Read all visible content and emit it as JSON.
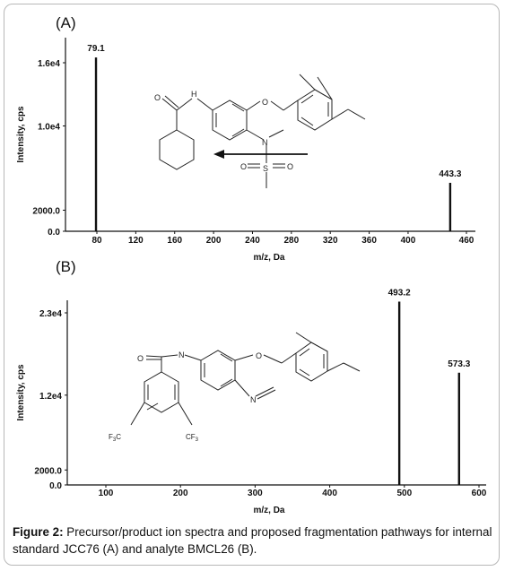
{
  "chart_data": [
    {
      "panel": "(A)",
      "type": "bar",
      "xlabel": "m/z, Da",
      "ylabel": "Intensity, cps",
      "xlim": [
        60,
        462
      ],
      "ylim": [
        0,
        17000
      ],
      "x_ticks": [
        80,
        120,
        160,
        200,
        240,
        280,
        320,
        360,
        400,
        460
      ],
      "y_ticks": [
        {
          "value": 0,
          "label": "0.0"
        },
        {
          "value": 2000,
          "label": "2000.0"
        },
        {
          "value": 10000,
          "label": "1.0e4"
        },
        {
          "value": 16000,
          "label": "1.6e4"
        }
      ],
      "peaks": [
        {
          "x": 79.1,
          "y": 16500,
          "label": "79.1"
        },
        {
          "x": 443.3,
          "y": 4600,
          "label": "443.3"
        }
      ],
      "grid": false
    },
    {
      "panel": "(B)",
      "type": "bar",
      "xlabel": "m/z, Da",
      "ylabel": "Intensity, cps",
      "xlim": [
        50,
        600
      ],
      "ylim": [
        0,
        25000
      ],
      "x_ticks": [
        100,
        200,
        300,
        400,
        500,
        600
      ],
      "y_ticks": [
        {
          "value": 0,
          "label": "0.0"
        },
        {
          "value": 2000,
          "label": "2000.0"
        },
        {
          "value": 12000,
          "label": "1.2e4"
        },
        {
          "value": 23000,
          "label": "2.3e4"
        }
      ],
      "peaks": [
        {
          "x": 493.2,
          "y": 24500,
          "label": "493.2"
        },
        {
          "x": 573.3,
          "y": 15000,
          "label": "573.3"
        }
      ],
      "grid": false
    }
  ],
  "chem_labels": {
    "o": "O",
    "hn": "H",
    "n": "N",
    "s": "S",
    "cf3": "CF",
    "f3c": "F",
    "f3c_c": "C",
    "sub3": "3"
  },
  "caption": {
    "label": "Figure 2:",
    "text": "Precursor/product ion spectra and proposed fragmentation pathways for internal standard JCC76 (A) and analyte BMCL26 (B)."
  }
}
